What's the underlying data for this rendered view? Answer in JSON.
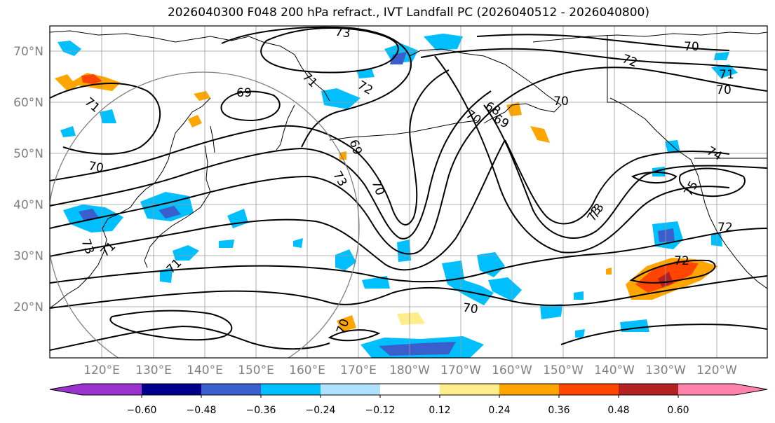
{
  "title": "2026040300 F048 200 hPa refract., IVT Landfall PC (2026040512 - 2026040800)",
  "lat_labels": [
    "70°N",
    "60°N",
    "50°N",
    "40°N",
    "30°N",
    "20°N"
  ],
  "lon_labels": [
    "120°E",
    "130°E",
    "140°E",
    "150°E",
    "160°E",
    "170°E",
    "180°W",
    "170°W",
    "160°W",
    "150°W",
    "140°W",
    "130°W",
    "120°W"
  ],
  "colorbar": {
    "tick_labels": [
      "−0.60",
      "−0.48",
      "−0.36",
      "−0.24",
      "−0.12",
      "0.12",
      "0.24",
      "0.36",
      "0.48",
      "0.60"
    ],
    "colors": [
      "#9a32cd",
      "#00008b",
      "#3a5fcd",
      "#00bfff",
      "#b0e2ff",
      "#ffffff",
      "#ffec8b",
      "#ffa500",
      "#ff4500",
      "#b22222",
      "#ff82ab"
    ]
  },
  "contour_labels": [
    {
      "text": "73"
    },
    {
      "text": "73"
    },
    {
      "text": "73"
    },
    {
      "text": "73"
    },
    {
      "text": "72"
    },
    {
      "text": "72"
    },
    {
      "text": "72"
    },
    {
      "text": "72"
    },
    {
      "text": "71"
    },
    {
      "text": "71"
    },
    {
      "text": "71"
    },
    {
      "text": "71"
    },
    {
      "text": "71"
    },
    {
      "text": "70"
    },
    {
      "text": "70"
    },
    {
      "text": "70"
    },
    {
      "text": "70"
    },
    {
      "text": "70"
    },
    {
      "text": "70"
    },
    {
      "text": "70"
    },
    {
      "text": "70"
    },
    {
      "text": "69"
    },
    {
      "text": "69"
    },
    {
      "text": "69"
    },
    {
      "text": "68"
    },
    {
      "text": "74"
    },
    {
      "text": "75"
    },
    {
      "text": "73"
    }
  ]
}
